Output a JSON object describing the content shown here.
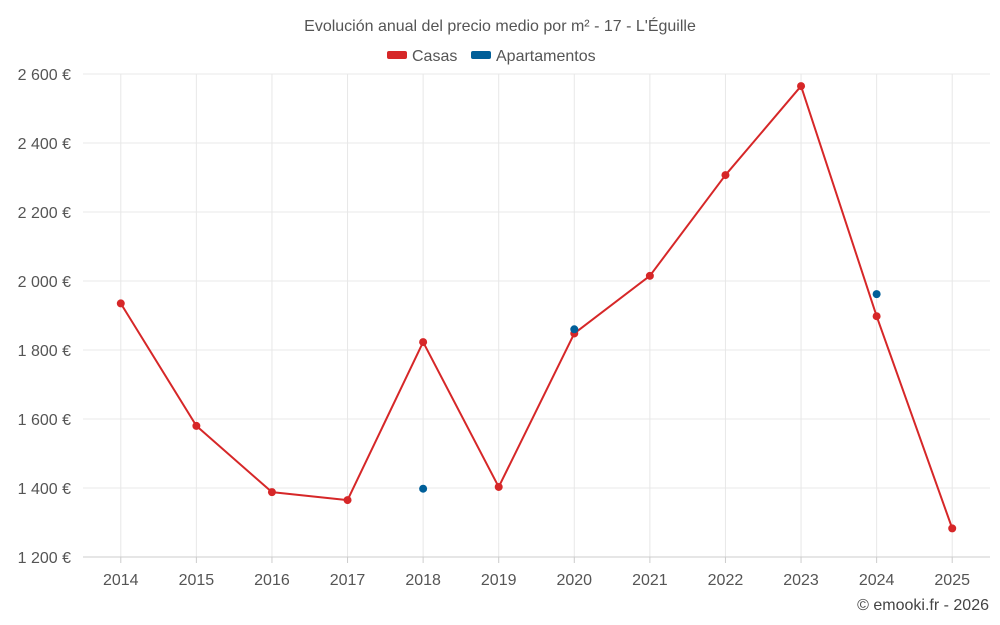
{
  "chart_data": {
    "type": "line",
    "title": "Evolución anual del precio medio por m² - 17 - L'Éguille",
    "categories": [
      "2014",
      "2015",
      "2016",
      "2017",
      "2018",
      "2019",
      "2020",
      "2021",
      "2022",
      "2023",
      "2024",
      "2025"
    ],
    "series": [
      {
        "name": "Casas",
        "color": "#d62728",
        "style": "line-with-markers",
        "values": [
          1935,
          1580,
          1388,
          1365,
          1823,
          1403,
          1848,
          2015,
          2307,
          2565,
          1898,
          1283
        ]
      },
      {
        "name": "Apartamentos",
        "color": "#005f99",
        "style": "markers-only",
        "values": [
          null,
          null,
          null,
          null,
          1398,
          null,
          1860,
          null,
          null,
          null,
          1962,
          null
        ]
      }
    ],
    "ylim": [
      1200,
      2600
    ],
    "yticks": [
      1200,
      1400,
      1600,
      1800,
      2000,
      2200,
      2400,
      2600
    ],
    "ytick_labels": [
      "1 200 €",
      "1 400 €",
      "1 600 €",
      "1 800 €",
      "2 000 €",
      "2 200 €",
      "2 400 €",
      "2 600 €"
    ],
    "xlabel": "",
    "ylabel": "",
    "grid": true,
    "legend_position": "top-center"
  },
  "credit": "© emooki.fr - 2026"
}
